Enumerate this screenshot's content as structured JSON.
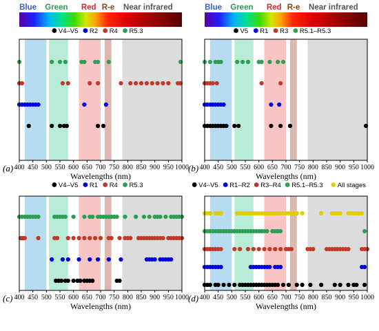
{
  "chart_data": [
    {
      "type": "scatter",
      "panel_label": "(a)",
      "show_spectrum": true,
      "bands": [
        "Blue",
        "Green",
        "Red",
        "R-e",
        "Near infrared"
      ],
      "xlabel": "Wavelengths (nm)",
      "xlim": [
        400,
        1000
      ],
      "xticks": [
        400,
        450,
        500,
        550,
        600,
        650,
        700,
        750,
        800,
        850,
        900,
        950,
        1000
      ],
      "series": [
        {
          "name": "V4–V5",
          "color": "#000000",
          "x": [
            435,
            520,
            550,
            565,
            575,
            690,
            710
          ]
        },
        {
          "name": "R2",
          "color": "#0000e0",
          "x": [
            400,
            410,
            420,
            430,
            440,
            450,
            460,
            470,
            640,
            720
          ]
        },
        {
          "name": "R4",
          "color": "#c0392b",
          "x": [
            400,
            410,
            560,
            580,
            660,
            690,
            775,
            810,
            830,
            850,
            870,
            890,
            910,
            930,
            950,
            985,
            995
          ]
        },
        {
          "name": "R5.3",
          "color": "#2e9e55",
          "x": [
            400,
            520,
            550,
            570,
            630,
            640,
            680,
            690,
            730,
            995
          ]
        }
      ]
    },
    {
      "type": "scatter",
      "panel_label": "(b)",
      "show_spectrum": true,
      "bands": [
        "Blue",
        "Green",
        "Red",
        "R-e",
        "Near infrared"
      ],
      "xlabel": "Wavelengths (nm)",
      "xlim": [
        400,
        1000
      ],
      "xticks": [
        400,
        450,
        500,
        550,
        600,
        650,
        700,
        750,
        800,
        850,
        900,
        950,
        1000
      ],
      "series": [
        {
          "name": "V5",
          "color": "#000000",
          "x": [
            400,
            410,
            420,
            430,
            440,
            450,
            460,
            470,
            480,
            510,
            525,
            645,
            680,
            715,
            995
          ]
        },
        {
          "name": "R1",
          "color": "#0000e0",
          "x": [
            400,
            410,
            420,
            430,
            440,
            450,
            460,
            470,
            645,
            675
          ]
        },
        {
          "name": "R3",
          "color": "#c0392b",
          "x": [
            400,
            410,
            420,
            430,
            445,
            610,
            680
          ]
        },
        {
          "name": "R5.1–R5.3",
          "color": "#2e9e55",
          "x": [
            400,
            420,
            440,
            450,
            460,
            520,
            540,
            560,
            600,
            610,
            640,
            670,
            690
          ]
        }
      ]
    },
    {
      "type": "scatter",
      "panel_label": "(c)",
      "show_spectrum": false,
      "bands": [],
      "xlabel": "Wavelengths (nm)",
      "xlim": [
        400,
        1000
      ],
      "xticks": [
        400,
        450,
        500,
        550,
        600,
        650,
        700,
        750,
        800,
        850,
        900,
        950,
        1000
      ],
      "series": [
        {
          "name": "V4–V5",
          "color": "#000000",
          "x": [
            535,
            545,
            555,
            570,
            580,
            600,
            615,
            625,
            640,
            650,
            660,
            670,
            760,
            770
          ]
        },
        {
          "name": "R1",
          "color": "#0000e0",
          "x": [
            520,
            560,
            580,
            620,
            660,
            690,
            730,
            775,
            870,
            880,
            890,
            900,
            920,
            930,
            940,
            950,
            960
          ]
        },
        {
          "name": "R4",
          "color": "#c0392b",
          "x": [
            405,
            410,
            415,
            420,
            470,
            530,
            540,
            580,
            600,
            620,
            640,
            660,
            680,
            700,
            730,
            740,
            770,
            790,
            800,
            810,
            840,
            850,
            860,
            870,
            880,
            890,
            900,
            910,
            920,
            930,
            950,
            960,
            970,
            980,
            990,
            1000
          ]
        },
        {
          "name": "R5.3",
          "color": "#2e9e55",
          "x": [
            400,
            410,
            420,
            430,
            440,
            450,
            460,
            470,
            530,
            540,
            550,
            560,
            570,
            600,
            640,
            660,
            670,
            690,
            700,
            710,
            720,
            730,
            740,
            750,
            760,
            790,
            830,
            860,
            880,
            900,
            910,
            920,
            940,
            960,
            970,
            980,
            990,
            1000
          ]
        }
      ]
    },
    {
      "type": "scatter",
      "panel_label": "(d)",
      "show_spectrum": false,
      "bands": [],
      "xlabel": "Wavelengths (nm)",
      "xlim": [
        400,
        1000
      ],
      "xticks": [
        400,
        450,
        500,
        550,
        600,
        650,
        700,
        750,
        800,
        850,
        900,
        950,
        1000
      ],
      "series": [
        {
          "name": "V4–V5",
          "color": "#000000",
          "x": [
            400,
            410,
            420,
            440,
            450,
            470,
            490,
            510,
            530,
            540,
            550,
            560,
            570,
            580,
            590,
            600,
            610,
            620,
            630,
            640,
            650,
            660,
            670,
            690,
            710,
            740,
            760,
            790,
            830,
            880,
            900,
            930,
            950,
            960,
            990
          ]
        },
        {
          "name": "R1–R2",
          "color": "#0000e0",
          "x": [
            400,
            410,
            420,
            430,
            440,
            450,
            460,
            570,
            580,
            590,
            600,
            610,
            620,
            630,
            640,
            660,
            670,
            680,
            980,
            990
          ]
        },
        {
          "name": "R3–R4",
          "color": "#c0392b",
          "x": [
            400,
            410,
            420,
            430,
            440,
            450,
            460,
            510,
            530,
            560,
            580,
            600,
            620,
            640,
            660,
            680,
            700,
            710,
            720,
            780,
            790,
            800,
            850,
            860,
            870,
            880,
            890,
            900,
            910,
            920,
            930,
            980,
            990,
            1000
          ]
        },
        {
          "name": "R5.1–R5.3",
          "color": "#2e9e55",
          "x": [
            400,
            410,
            420,
            430,
            440,
            450,
            460,
            470,
            480,
            490,
            500,
            510,
            520,
            530,
            540,
            550,
            560,
            570,
            580,
            590,
            600,
            610,
            620,
            630,
            650,
            660,
            670,
            680,
            990
          ]
        },
        {
          "name": "All stages",
          "color": "#e3cc00",
          "x": [
            400,
            410,
            420,
            440,
            450,
            460,
            520,
            530,
            540,
            550,
            560,
            570,
            580,
            590,
            600,
            610,
            620,
            630,
            640,
            650,
            660,
            670,
            680,
            690,
            700,
            710,
            720,
            730,
            740,
            760,
            830,
            870,
            880,
            890,
            900,
            930,
            940,
            950,
            960,
            970,
            980
          ]
        }
      ]
    }
  ]
}
